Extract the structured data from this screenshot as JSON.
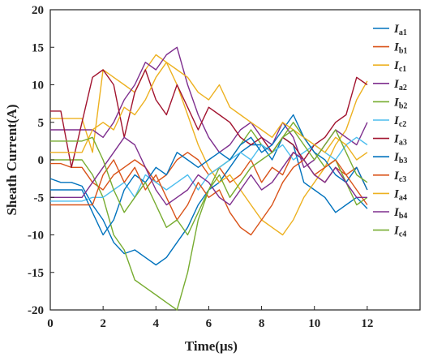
{
  "chart_data": {
    "type": "line",
    "title": "",
    "xlabel": "Time(μs)",
    "ylabel": "Sheath Current(A)",
    "xlim": [
      0,
      14
    ],
    "ylim": [
      -20,
      20
    ],
    "xticks": [
      0,
      2,
      4,
      6,
      8,
      10,
      12
    ],
    "yticks": [
      -20,
      -15,
      -10,
      -5,
      0,
      5,
      10,
      15,
      20
    ],
    "grid": false,
    "legend_position": "top-right",
    "series": [
      {
        "name": "Ia1",
        "label_main": "I",
        "label_sub": "a1",
        "color": "#0072BD",
        "x": [
          0,
          0.4,
          0.8,
          1.2,
          1.6,
          2,
          2.4,
          2.8,
          3.2,
          3.6,
          4,
          4.4,
          4.8,
          5.2,
          5.6,
          6,
          6.4,
          6.8,
          7.2,
          7.6,
          8,
          8.4,
          8.8,
          9.2,
          9.6,
          10,
          10.4,
          10.8,
          11.2,
          11.6,
          12
        ],
        "y": [
          -2.5,
          -3,
          -3,
          -3.5,
          -6,
          -8,
          -11,
          -12.5,
          -12,
          -13,
          -14,
          -13,
          -11,
          -9,
          -6,
          -4,
          -3,
          -1,
          1,
          2,
          2,
          0,
          3,
          2,
          -3,
          -4,
          -5,
          -7,
          -6,
          -5,
          -6.5
        ]
      },
      {
        "name": "Ib1",
        "label_main": "I",
        "label_sub": "b1",
        "color": "#D95319",
        "x": [
          0,
          0.4,
          0.8,
          1.2,
          1.6,
          2,
          2.4,
          2.8,
          3.2,
          3.6,
          4,
          4.4,
          4.8,
          5.2,
          5.6,
          6,
          6.4,
          6.8,
          7.2,
          7.6,
          8,
          8.4,
          8.8,
          9.2,
          9.6,
          10,
          10.4,
          10.8,
          11.2,
          11.6,
          12
        ],
        "y": [
          -0.5,
          -0.5,
          -1,
          -1,
          -3,
          -4,
          -2,
          -1,
          0,
          -1,
          -3,
          -2,
          0,
          1,
          0,
          -2,
          -1,
          -3,
          -2,
          0,
          -3,
          -1,
          -2,
          1,
          0,
          -2,
          -3,
          -1,
          -2,
          -1,
          -4
        ]
      },
      {
        "name": "Ic1",
        "label_main": "I",
        "label_sub": "c1",
        "color": "#EDB120",
        "x": [
          0,
          0.4,
          0.8,
          1.2,
          1.6,
          2,
          2.4,
          2.8,
          3.2,
          3.6,
          4,
          4.4,
          4.8,
          5.2,
          5.6,
          6,
          6.4,
          6.8,
          7.2,
          7.6,
          8,
          8.4,
          8.8,
          9.2,
          9.6,
          10,
          10.4,
          10.8,
          11.2,
          11.6,
          12
        ],
        "y": [
          5.5,
          5.5,
          5.5,
          5.5,
          1,
          12,
          11,
          10,
          9,
          12,
          14,
          13,
          10,
          6,
          2,
          -1,
          -3,
          -2,
          -4,
          -6,
          -8,
          -9,
          -10,
          -8,
          -5,
          -3,
          -1,
          2,
          4,
          8,
          10.5
        ]
      },
      {
        "name": "Ia2",
        "label_main": "I",
        "label_sub": "a2",
        "color": "#7E2F8E",
        "x": [
          0,
          0.4,
          0.8,
          1.2,
          1.6,
          2,
          2.4,
          2.8,
          3.2,
          3.6,
          4,
          4.4,
          4.8,
          5.2,
          5.6,
          6,
          6.4,
          6.8,
          7.2,
          7.6,
          8,
          8.4,
          8.8,
          9.2,
          9.6,
          10,
          10.4,
          10.8,
          11.2,
          11.6,
          12
        ],
        "y": [
          4,
          4,
          4,
          4,
          4,
          3,
          5,
          8,
          10,
          13,
          12,
          14,
          15,
          10,
          6,
          3,
          1,
          2,
          4,
          5,
          3,
          2,
          5,
          3,
          -1,
          0,
          2,
          4,
          3,
          2,
          5
        ]
      },
      {
        "name": "Ib2",
        "label_main": "I",
        "label_sub": "b2",
        "color": "#77AC30",
        "x": [
          0,
          0.4,
          0.8,
          1.2,
          1.6,
          2,
          2.4,
          2.8,
          3.2,
          3.6,
          4,
          4.4,
          4.8,
          5.2,
          5.6,
          6,
          6.4,
          6.8,
          7.2,
          7.6,
          8,
          8.4,
          8.8,
          9.2,
          9.6,
          10,
          10.4,
          10.8,
          11.2,
          11.6,
          12
        ],
        "y": [
          0,
          0,
          0,
          0,
          -2,
          -5,
          -10,
          -12,
          -16,
          -17,
          -18,
          -19,
          -20,
          -15,
          -8,
          -4,
          -1,
          0,
          2,
          4,
          2,
          1,
          3,
          5,
          3,
          1,
          -1,
          0,
          -3,
          -6,
          -5
        ]
      },
      {
        "name": "Ic2",
        "label_main": "I",
        "label_sub": "c2",
        "color": "#4DBEEE",
        "x": [
          0,
          0.4,
          0.8,
          1.2,
          1.6,
          2,
          2.4,
          2.8,
          3.2,
          3.6,
          4,
          4.4,
          4.8,
          5.2,
          5.6,
          6,
          6.4,
          6.8,
          7.2,
          7.6,
          8,
          8.4,
          8.8,
          9.2,
          9.6,
          10,
          10.4,
          10.8,
          11.2,
          11.6,
          12
        ],
        "y": [
          -5.5,
          -5.5,
          -5.5,
          -5.5,
          -5,
          -5,
          -4,
          -3,
          -5,
          -2,
          -3,
          -4,
          -3,
          -2,
          -4,
          -2,
          -1,
          0,
          1,
          0,
          2,
          1,
          2,
          0,
          1,
          2,
          1,
          0,
          2,
          3,
          2
        ]
      },
      {
        "name": "Ia3",
        "label_main": "I",
        "label_sub": "a3",
        "color": "#A2142F",
        "x": [
          0,
          0.4,
          0.8,
          1.2,
          1.6,
          2,
          2.4,
          2.8,
          3.2,
          3.6,
          4,
          4.4,
          4.8,
          5.2,
          5.6,
          6,
          6.4,
          6.8,
          7.2,
          7.6,
          8,
          8.4,
          8.8,
          9.2,
          9.6,
          10,
          10.4,
          10.8,
          11.2,
          11.6,
          12
        ],
        "y": [
          6.5,
          6.5,
          -1,
          5,
          11,
          12,
          10,
          3,
          9,
          12,
          8,
          6,
          10,
          7,
          4,
          7,
          6,
          5,
          3,
          2,
          3,
          1,
          3,
          2,
          0,
          2,
          3,
          5,
          6,
          11,
          10
        ]
      },
      {
        "name": "Ib3",
        "label_main": "I",
        "label_sub": "b3",
        "color": "#0072BD",
        "x": [
          0,
          0.4,
          0.8,
          1.2,
          1.6,
          2,
          2.4,
          2.8,
          3.2,
          3.6,
          4,
          4.4,
          4.8,
          5.2,
          5.6,
          6,
          6.4,
          6.8,
          7.2,
          7.6,
          8,
          8.4,
          8.8,
          9.2,
          9.6,
          10,
          10.4,
          10.8,
          11.2,
          11.6,
          12
        ],
        "y": [
          -4,
          -4,
          -4,
          -4,
          -7,
          -10,
          -8,
          -4,
          -2,
          -3,
          -1,
          -2,
          1,
          0,
          -1,
          0,
          1,
          0,
          2,
          3,
          1,
          2,
          4,
          6,
          3,
          1,
          0,
          -2,
          -3,
          -1,
          -4
        ]
      },
      {
        "name": "Ic3",
        "label_main": "I",
        "label_sub": "c3",
        "color": "#D95319",
        "x": [
          0,
          0.4,
          0.8,
          1.2,
          1.6,
          2,
          2.4,
          2.8,
          3.2,
          3.6,
          4,
          4.4,
          4.8,
          5.2,
          5.6,
          6,
          6.4,
          6.8,
          7.2,
          7.6,
          8,
          8.4,
          8.8,
          9.2,
          9.6,
          10,
          10.4,
          10.8,
          11.2,
          11.6,
          12
        ],
        "y": [
          -6,
          -6,
          -6,
          -6,
          -6,
          -2,
          0,
          -3,
          -1,
          -4,
          -2,
          -5,
          -8,
          -6,
          -3,
          -5,
          -4,
          -7,
          -9,
          -10,
          -8,
          -6,
          -3,
          -1,
          0,
          -2,
          -1,
          0,
          -2,
          -4,
          -6
        ]
      },
      {
        "name": "Ia4",
        "label_main": "I",
        "label_sub": "a4",
        "color": "#EDB120",
        "x": [
          0,
          0.4,
          0.8,
          1.2,
          1.6,
          2,
          2.4,
          2.8,
          3.2,
          3.6,
          4,
          4.4,
          4.8,
          5.2,
          5.6,
          6,
          6.4,
          6.8,
          7.2,
          7.6,
          8,
          8.4,
          8.8,
          9.2,
          9.6,
          10,
          10.4,
          10.8,
          11.2,
          11.6,
          12
        ],
        "y": [
          1,
          1,
          1,
          1,
          4,
          5,
          4,
          7,
          6,
          8,
          11,
          13,
          12,
          11,
          9,
          8,
          10,
          7,
          6,
          5,
          4,
          3,
          5,
          4,
          3,
          2,
          1,
          3,
          2,
          0,
          1
        ]
      },
      {
        "name": "Ib4",
        "label_main": "I",
        "label_sub": "b4",
        "color": "#7E2F8E",
        "x": [
          0,
          0.4,
          0.8,
          1.2,
          1.6,
          2,
          2.4,
          2.8,
          3.2,
          3.6,
          4,
          4.4,
          4.8,
          5.2,
          5.6,
          6,
          6.4,
          6.8,
          7.2,
          7.6,
          8,
          8.4,
          8.8,
          9.2,
          9.6,
          10,
          10.4,
          10.8,
          11.2,
          11.6,
          12
        ],
        "y": [
          -5,
          -5,
          -5,
          -5,
          -3,
          -1,
          1,
          3,
          2,
          -1,
          -4,
          -6,
          -5,
          -4,
          -2,
          -3,
          -5,
          -6,
          -4,
          -2,
          -4,
          -3,
          -1,
          1,
          0,
          -2,
          -3,
          -1,
          -3,
          -5,
          -5
        ]
      },
      {
        "name": "Ic4",
        "label_main": "I",
        "label_sub": "c4",
        "color": "#77AC30",
        "x": [
          0,
          0.4,
          0.8,
          1.2,
          1.6,
          2,
          2.4,
          2.8,
          3.2,
          3.6,
          4,
          4.4,
          4.8,
          5.2,
          5.6,
          6,
          6.4,
          6.8,
          7.2,
          7.6,
          8,
          8.4,
          8.8,
          9.2,
          9.6,
          10,
          10.4,
          10.8,
          11.2,
          11.6,
          12
        ],
        "y": [
          2.5,
          2.5,
          2.5,
          2.5,
          3,
          0,
          -4,
          -7,
          -5,
          -3,
          -6,
          -9,
          -8,
          -10,
          -7,
          -4,
          -2,
          -5,
          -3,
          -1,
          0,
          1,
          3,
          4,
          2,
          0,
          2,
          4,
          1,
          -2,
          -3
        ]
      }
    ]
  }
}
